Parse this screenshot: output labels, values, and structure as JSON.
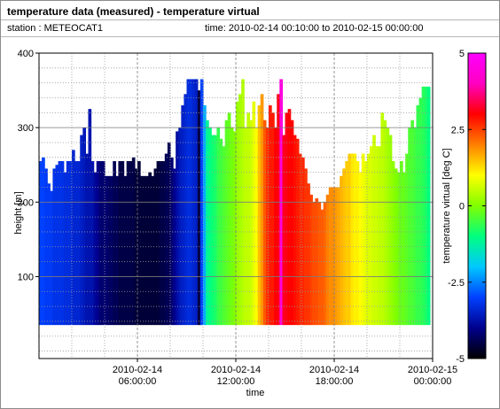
{
  "header": {
    "title": "temperature data (measured) - temperature virtual",
    "station": "station : METEOCAT1",
    "time_range": "time: 2010-02-14 00:10:00 to 2010-02-15 00:00:00"
  },
  "chart_data": {
    "type": "heatmap",
    "xlabel": "time",
    "ylabel": "height [m]",
    "colorbar_label": "temperature virtual [deg C]",
    "xlim": [
      "2010-02-14 00:10:00",
      "2010-02-15 00:00:00"
    ],
    "x_ticks": [
      {
        "value": "2010-02-14 06:00:00",
        "line1": "2010-02-14",
        "line2": "06:00:00"
      },
      {
        "value": "2010-02-14 12:00:00",
        "line1": "2010-02-14",
        "line2": "12:00:00"
      },
      {
        "value": "2010-02-14 18:00:00",
        "line1": "2010-02-14",
        "line2": "18:00:00"
      },
      {
        "value": "2010-02-15 00:00:00",
        "line1": "2010-02-15",
        "line2": "00:00:00"
      }
    ],
    "ylim": [
      -10,
      400
    ],
    "y_ticks": [
      100,
      200,
      300,
      400
    ],
    "y_tick_labels": [
      "100",
      "200",
      "300",
      "400"
    ],
    "colorbar_range": [
      -5,
      5
    ],
    "colorbar_ticks": [
      "5",
      "2.5",
      "0",
      "-2.5",
      "-5"
    ],
    "colorscale": [
      "#000000",
      "#00008c",
      "#0040ff",
      "#00c8ff",
      "#00ff80",
      "#80ff00",
      "#ffff00",
      "#ff8000",
      "#ff0000",
      "#ff00c0",
      "#ff00ff"
    ],
    "grid": true,
    "lowest_height": 35,
    "profile_interval_minutes": 10,
    "profiles": [
      {
        "time": "00:10",
        "temp": -3.0,
        "top": 255
      },
      {
        "time": "00:20",
        "temp": -3.0,
        "top": 260
      },
      {
        "time": "00:30",
        "temp": -3.1,
        "top": 245
      },
      {
        "time": "00:40",
        "temp": -3.1,
        "top": 225
      },
      {
        "time": "00:50",
        "temp": -3.1,
        "top": 215
      },
      {
        "time": "01:00",
        "temp": -3.2,
        "top": 245
      },
      {
        "time": "01:10",
        "temp": -3.2,
        "top": 250
      },
      {
        "time": "01:20",
        "temp": -3.2,
        "top": 255
      },
      {
        "time": "01:30",
        "temp": -3.2,
        "top": 255
      },
      {
        "time": "01:40",
        "temp": -3.3,
        "top": 240
      },
      {
        "time": "01:50",
        "temp": -3.3,
        "top": 255
      },
      {
        "time": "02:00",
        "temp": -3.3,
        "top": 255
      },
      {
        "time": "02:10",
        "temp": -3.4,
        "top": 270
      },
      {
        "time": "02:20",
        "temp": -3.4,
        "top": 255
      },
      {
        "time": "02:30",
        "temp": -3.4,
        "top": 255
      },
      {
        "time": "02:40",
        "temp": -3.5,
        "top": 290
      },
      {
        "time": "02:50",
        "temp": -3.6,
        "top": 300
      },
      {
        "time": "03:00",
        "temp": -3.7,
        "top": 265
      },
      {
        "time": "03:10",
        "temp": -3.7,
        "top": 325
      },
      {
        "time": "03:20",
        "temp": -3.7,
        "top": 255
      },
      {
        "time": "03:30",
        "temp": -3.9,
        "top": 240
      },
      {
        "time": "03:40",
        "temp": -4.0,
        "top": 255
      },
      {
        "time": "03:50",
        "temp": -4.2,
        "top": 255
      },
      {
        "time": "04:00",
        "temp": -4.2,
        "top": 255
      },
      {
        "time": "04:10",
        "temp": -4.2,
        "top": 235
      },
      {
        "time": "04:20",
        "temp": -4.3,
        "top": 235
      },
      {
        "time": "04:30",
        "temp": -4.3,
        "top": 235
      },
      {
        "time": "04:40",
        "temp": -4.4,
        "top": 255
      },
      {
        "time": "04:50",
        "temp": -4.4,
        "top": 235
      },
      {
        "time": "05:00",
        "temp": -4.5,
        "top": 255
      },
      {
        "time": "05:10",
        "temp": -4.5,
        "top": 255
      },
      {
        "time": "05:20",
        "temp": -4.5,
        "top": 235
      },
      {
        "time": "05:30",
        "temp": -4.5,
        "top": 255
      },
      {
        "time": "05:40",
        "temp": -4.5,
        "top": 255
      },
      {
        "time": "05:50",
        "temp": -4.5,
        "top": 260
      },
      {
        "time": "06:00",
        "temp": -4.6,
        "top": 245
      },
      {
        "time": "06:10",
        "temp": -4.6,
        "top": 255
      },
      {
        "time": "06:20",
        "temp": -4.6,
        "top": 235
      },
      {
        "time": "06:30",
        "temp": -4.6,
        "top": 235
      },
      {
        "time": "06:40",
        "temp": -4.6,
        "top": 235
      },
      {
        "time": "06:50",
        "temp": -4.6,
        "top": 240
      },
      {
        "time": "07:00",
        "temp": -4.6,
        "top": 235
      },
      {
        "time": "07:10",
        "temp": -4.6,
        "top": 245
      },
      {
        "time": "07:20",
        "temp": -4.6,
        "top": 255
      },
      {
        "time": "07:30",
        "temp": -4.5,
        "top": 255
      },
      {
        "time": "07:40",
        "temp": -4.5,
        "top": 255
      },
      {
        "time": "07:50",
        "temp": -4.4,
        "top": 265
      },
      {
        "time": "08:00",
        "temp": -4.4,
        "top": 280
      },
      {
        "time": "08:10",
        "temp": -4.2,
        "top": 260
      },
      {
        "time": "08:20",
        "temp": -4.0,
        "top": 245
      },
      {
        "time": "08:30",
        "temp": -3.8,
        "top": 295
      },
      {
        "time": "08:40",
        "temp": -3.6,
        "top": 300
      },
      {
        "time": "08:50",
        "temp": -3.5,
        "top": 330
      },
      {
        "time": "09:00",
        "temp": -3.4,
        "top": 345
      },
      {
        "time": "09:10",
        "temp": -3.3,
        "top": 365
      },
      {
        "time": "09:20",
        "temp": -3.3,
        "top": 365
      },
      {
        "time": "09:30",
        "temp": -3.4,
        "top": 365
      },
      {
        "time": "09:40",
        "temp": -3.5,
        "top": 365
      },
      {
        "time": "09:50",
        "temp": -4.5,
        "top": 350
      },
      {
        "time": "10:00",
        "temp": -3.0,
        "top": 365
      },
      {
        "time": "10:10",
        "temp": -2.2,
        "top": 330
      },
      {
        "time": "10:20",
        "temp": -1.2,
        "top": 310
      },
      {
        "time": "10:30",
        "temp": -1.0,
        "top": 300
      },
      {
        "time": "10:40",
        "temp": -0.9,
        "top": 290
      },
      {
        "time": "10:50",
        "temp": -0.8,
        "top": 290
      },
      {
        "time": "11:00",
        "temp": -0.6,
        "top": 300
      },
      {
        "time": "11:10",
        "temp": -0.5,
        "top": 285
      },
      {
        "time": "11:20",
        "temp": -0.4,
        "top": 275
      },
      {
        "time": "11:30",
        "temp": -0.3,
        "top": 310
      },
      {
        "time": "11:40",
        "temp": -0.2,
        "top": 320
      },
      {
        "time": "11:50",
        "temp": -0.1,
        "top": 300
      },
      {
        "time": "12:00",
        "temp": 0.0,
        "top": 295
      },
      {
        "time": "12:10",
        "temp": 0.2,
        "top": 335
      },
      {
        "time": "12:20",
        "temp": 0.3,
        "top": 345
      },
      {
        "time": "12:30",
        "temp": 0.4,
        "top": 365
      },
      {
        "time": "12:40",
        "temp": 0.5,
        "top": 300
      },
      {
        "time": "12:50",
        "temp": 0.5,
        "top": 320
      },
      {
        "time": "13:00",
        "temp": 0.6,
        "top": 310
      },
      {
        "time": "13:10",
        "temp": 0.8,
        "top": 335
      },
      {
        "time": "13:20",
        "temp": 1.0,
        "top": 300
      },
      {
        "time": "13:30",
        "temp": 1.5,
        "top": 330
      },
      {
        "time": "13:40",
        "temp": 1.8,
        "top": 345
      },
      {
        "time": "13:50",
        "temp": 2.3,
        "top": 310
      },
      {
        "time": "14:00",
        "temp": 2.6,
        "top": 300
      },
      {
        "time": "14:10",
        "temp": 2.8,
        "top": 330
      },
      {
        "time": "14:20",
        "temp": 2.8,
        "top": 320
      },
      {
        "time": "14:30",
        "temp": 3.0,
        "top": 300
      },
      {
        "time": "14:40",
        "temp": 3.1,
        "top": 345
      },
      {
        "time": "14:50",
        "temp": 4.5,
        "top": 365
      },
      {
        "time": "15:00",
        "temp": 3.2,
        "top": 290
      },
      {
        "time": "15:10",
        "temp": 3.1,
        "top": 320
      },
      {
        "time": "15:20",
        "temp": 3.0,
        "top": 325
      },
      {
        "time": "15:30",
        "temp": 3.0,
        "top": 310
      },
      {
        "time": "15:40",
        "temp": 2.9,
        "top": 290
      },
      {
        "time": "15:50",
        "temp": 2.8,
        "top": 285
      },
      {
        "time": "16:00",
        "temp": 2.7,
        "top": 265
      },
      {
        "time": "16:10",
        "temp": 2.7,
        "top": 260
      },
      {
        "time": "16:20",
        "temp": 2.6,
        "top": 245
      },
      {
        "time": "16:30",
        "temp": 2.6,
        "top": 225
      },
      {
        "time": "16:40",
        "temp": 2.5,
        "top": 210
      },
      {
        "time": "16:50",
        "temp": 2.4,
        "top": 200
      },
      {
        "time": "17:00",
        "temp": 2.4,
        "top": 205
      },
      {
        "time": "17:10",
        "temp": 2.3,
        "top": 200
      },
      {
        "time": "17:20",
        "temp": 2.3,
        "top": 190
      },
      {
        "time": "17:30",
        "temp": 2.2,
        "top": 200
      },
      {
        "time": "17:40",
        "temp": 2.0,
        "top": 210
      },
      {
        "time": "17:50",
        "temp": 1.9,
        "top": 220
      },
      {
        "time": "18:00",
        "temp": 1.9,
        "top": 220
      },
      {
        "time": "18:10",
        "temp": 1.8,
        "top": 220
      },
      {
        "time": "18:20",
        "temp": 1.7,
        "top": 220
      },
      {
        "time": "18:30",
        "temp": 1.6,
        "top": 235
      },
      {
        "time": "18:40",
        "temp": 1.5,
        "top": 245
      },
      {
        "time": "18:50",
        "temp": 1.4,
        "top": 255
      },
      {
        "time": "19:00",
        "temp": 1.4,
        "top": 265
      },
      {
        "time": "19:10",
        "temp": 1.2,
        "top": 265
      },
      {
        "time": "19:20",
        "temp": 1.1,
        "top": 265
      },
      {
        "time": "19:30",
        "temp": 1.1,
        "top": 255
      },
      {
        "time": "19:40",
        "temp": 1.0,
        "top": 240
      },
      {
        "time": "19:50",
        "temp": 0.9,
        "top": 265
      },
      {
        "time": "20:00",
        "temp": 0.8,
        "top": 255
      },
      {
        "time": "20:10",
        "temp": 0.7,
        "top": 265
      },
      {
        "time": "20:20",
        "temp": 0.7,
        "top": 275
      },
      {
        "time": "20:30",
        "temp": 0.6,
        "top": 290
      },
      {
        "time": "20:40",
        "temp": 0.6,
        "top": 275
      },
      {
        "time": "20:50",
        "temp": 0.5,
        "top": 275
      },
      {
        "time": "21:00",
        "temp": 0.5,
        "top": 320
      },
      {
        "time": "21:10",
        "temp": 0.4,
        "top": 310
      },
      {
        "time": "21:20",
        "temp": 0.3,
        "top": 300
      },
      {
        "time": "21:30",
        "temp": 0.2,
        "top": 290
      },
      {
        "time": "21:40",
        "temp": 0.1,
        "top": 255
      },
      {
        "time": "21:50",
        "temp": 0.0,
        "top": 245
      },
      {
        "time": "22:00",
        "temp": -0.1,
        "top": 240
      },
      {
        "time": "22:10",
        "temp": -0.2,
        "top": 255
      },
      {
        "time": "22:20",
        "temp": -0.2,
        "top": 240
      },
      {
        "time": "22:30",
        "temp": -0.3,
        "top": 265
      },
      {
        "time": "22:40",
        "temp": -0.4,
        "top": 300
      },
      {
        "time": "22:50",
        "temp": -0.4,
        "top": 310
      },
      {
        "time": "23:00",
        "temp": -0.5,
        "top": 300
      },
      {
        "time": "23:10",
        "temp": -0.6,
        "top": 330
      },
      {
        "time": "23:20",
        "temp": -0.6,
        "top": 340
      },
      {
        "time": "23:30",
        "temp": -0.7,
        "top": 355
      },
      {
        "time": "23:40",
        "temp": -0.8,
        "top": 355
      },
      {
        "time": "23:50",
        "temp": -1.0,
        "top": 355
      }
    ]
  }
}
